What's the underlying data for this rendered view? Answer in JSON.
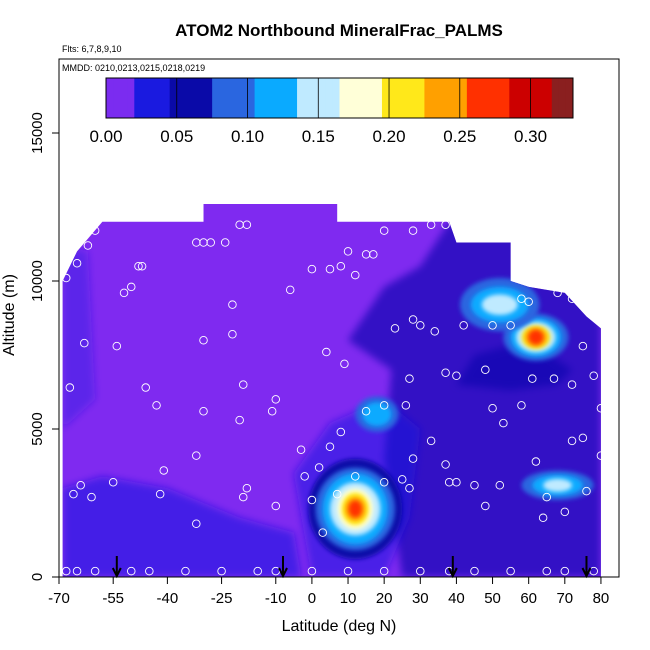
{
  "title": "ATOM2 Northbound MineralFrac_PALMS",
  "flights_text": "Flts: 6,7,8,9,10",
  "mmdd_text": "MMDD: 0210,0213,0215,0218,0219",
  "colors": {
    "scale": [
      "#7b2cf0",
      "#1a1ae0",
      "#0a0aa8",
      "#2a66e0",
      "#0aaaff",
      "#bfeaff",
      "#ffffd8",
      "#ffe81a",
      "#ffa000",
      "#ff3000",
      "#cc0000",
      "#8a1f1f"
    ],
    "background": "#7f2af0"
  },
  "chart_data": {
    "type": "heatmap",
    "title": "ATOM2 Northbound MineralFrac_PALMS",
    "xlabel": "Latitude (deg N)",
    "ylabel": "Altitude (m)",
    "xlim": [
      -70,
      85
    ],
    "ylim": [
      0,
      17500
    ],
    "x_ticks": [
      -70,
      -55,
      -40,
      -25,
      -10,
      0,
      10,
      20,
      30,
      40,
      50,
      60,
      70,
      80
    ],
    "x_tick_labels": [
      "-70",
      "-55",
      "-40",
      "-25",
      "-10",
      "0",
      "10",
      "20",
      "30",
      "40",
      "50",
      "60",
      "70",
      "80"
    ],
    "y_ticks": [
      0,
      5000,
      10000,
      15000
    ],
    "y_tick_labels": [
      "0",
      "5000",
      "10000",
      "15000"
    ],
    "colorbar": {
      "range": [
        0,
        0.33
      ],
      "ticks": [
        0.0,
        0.05,
        0.1,
        0.15,
        0.2,
        0.25,
        0.3
      ],
      "tick_labels": [
        "0.00",
        "0.05",
        "0.10",
        "0.15",
        "0.20",
        "0.25",
        "0.30"
      ],
      "placement": "top"
    },
    "hotspots": [
      {
        "lat": 12,
        "alt": 2300,
        "value": 0.26
      },
      {
        "lat": 62,
        "alt": 8100,
        "value": 0.28
      },
      {
        "lat": 52,
        "alt": 9200,
        "value": 0.1
      },
      {
        "lat": 68,
        "alt": 3100,
        "value": 0.12
      },
      {
        "lat": 18,
        "alt": 5500,
        "value": 0.06
      }
    ],
    "samples": [
      {
        "lat": -68,
        "alt": 10100
      },
      {
        "lat": -67,
        "alt": 6400
      },
      {
        "lat": -66,
        "alt": 2800
      },
      {
        "lat": -64,
        "alt": 3100
      },
      {
        "lat": -61,
        "alt": 2700
      },
      {
        "lat": -60,
        "alt": 11700
      },
      {
        "lat": -62,
        "alt": 11200
      },
      {
        "lat": -63,
        "alt": 7900
      },
      {
        "lat": -65,
        "alt": 10600
      },
      {
        "lat": -52,
        "alt": 9600
      },
      {
        "lat": -50,
        "alt": 9800
      },
      {
        "lat": -48,
        "alt": 10500
      },
      {
        "lat": -47,
        "alt": 10500
      },
      {
        "lat": -54,
        "alt": 7800
      },
      {
        "lat": -46,
        "alt": 6400
      },
      {
        "lat": -43,
        "alt": 5800
      },
      {
        "lat": -42,
        "alt": 2800
      },
      {
        "lat": -41,
        "alt": 3600
      },
      {
        "lat": -55,
        "alt": 3200
      },
      {
        "lat": -32,
        "alt": 11300
      },
      {
        "lat": -30,
        "alt": 11300
      },
      {
        "lat": -28,
        "alt": 11300
      },
      {
        "lat": -24,
        "alt": 11300
      },
      {
        "lat": -20,
        "alt": 11900
      },
      {
        "lat": -18,
        "alt": 11900
      },
      {
        "lat": -22,
        "alt": 8200
      },
      {
        "lat": -30,
        "alt": 8000
      },
      {
        "lat": -22,
        "alt": 9200
      },
      {
        "lat": -19,
        "alt": 6500
      },
      {
        "lat": -30,
        "alt": 5600
      },
      {
        "lat": -20,
        "alt": 5300
      },
      {
        "lat": -32,
        "alt": 4100
      },
      {
        "lat": -19,
        "alt": 2700
      },
      {
        "lat": -18,
        "alt": 3000
      },
      {
        "lat": -32,
        "alt": 1800
      },
      {
        "lat": -10,
        "alt": 6000
      },
      {
        "lat": -11,
        "alt": 5600
      },
      {
        "lat": -10,
        "alt": 2400
      },
      {
        "lat": -6,
        "alt": 9700
      },
      {
        "lat": 0,
        "alt": 10400
      },
      {
        "lat": 5,
        "alt": 10400
      },
      {
        "lat": 4,
        "alt": 7600
      },
      {
        "lat": 8,
        "alt": 10500
      },
      {
        "lat": 10,
        "alt": 11000
      },
      {
        "lat": 12,
        "alt": 10200
      },
      {
        "lat": 15,
        "alt": 10900
      },
      {
        "lat": 17,
        "alt": 10900
      },
      {
        "lat": 9,
        "alt": 7200
      },
      {
        "lat": 20,
        "alt": 11700
      },
      {
        "lat": 28,
        "alt": 11700
      },
      {
        "lat": 33,
        "alt": 11900
      },
      {
        "lat": 37,
        "alt": 11900
      },
      {
        "lat": 23,
        "alt": 8400
      },
      {
        "lat": 27,
        "alt": 6700
      },
      {
        "lat": 28,
        "alt": 8700
      },
      {
        "lat": 30,
        "alt": 8500
      },
      {
        "lat": 34,
        "alt": 8300
      },
      {
        "lat": 20,
        "alt": 5800
      },
      {
        "lat": 15,
        "alt": 5600
      },
      {
        "lat": 26,
        "alt": 5800
      },
      {
        "lat": 8,
        "alt": 4900
      },
      {
        "lat": 5,
        "alt": 4400
      },
      {
        "lat": 2,
        "alt": 3700
      },
      {
        "lat": -3,
        "alt": 4300
      },
      {
        "lat": -2,
        "alt": 3400
      },
      {
        "lat": 0,
        "alt": 2600
      },
      {
        "lat": 3,
        "alt": 1500
      },
      {
        "lat": 7,
        "alt": 2800
      },
      {
        "lat": 12,
        "alt": 3400
      },
      {
        "lat": 20,
        "alt": 3200
      },
      {
        "lat": 25,
        "alt": 3300
      },
      {
        "lat": 27,
        "alt": 3000
      },
      {
        "lat": 28,
        "alt": 4000
      },
      {
        "lat": 33,
        "alt": 4600
      },
      {
        "lat": 37,
        "alt": 6900
      },
      {
        "lat": 40,
        "alt": 6800
      },
      {
        "lat": 37,
        "alt": 3800
      },
      {
        "lat": 38,
        "alt": 3200
      },
      {
        "lat": 40,
        "alt": 3200
      },
      {
        "lat": 42,
        "alt": 8500
      },
      {
        "lat": 50,
        "alt": 8500
      },
      {
        "lat": 55,
        "alt": 8500
      },
      {
        "lat": 48,
        "alt": 7000
      },
      {
        "lat": 50,
        "alt": 5700
      },
      {
        "lat": 53,
        "alt": 5200
      },
      {
        "lat": 58,
        "alt": 5800
      },
      {
        "lat": 61,
        "alt": 6700
      },
      {
        "lat": 67,
        "alt": 6700
      },
      {
        "lat": 72,
        "alt": 6500
      },
      {
        "lat": 75,
        "alt": 7800
      },
      {
        "lat": 78,
        "alt": 6800
      },
      {
        "lat": 58,
        "alt": 9400
      },
      {
        "lat": 60,
        "alt": 9300
      },
      {
        "lat": 68,
        "alt": 9600
      },
      {
        "lat": 72,
        "alt": 9400
      },
      {
        "lat": 78,
        "alt": 8800
      },
      {
        "lat": 80,
        "alt": 5700
      },
      {
        "lat": 75,
        "alt": 4700
      },
      {
        "lat": 72,
        "alt": 4600
      },
      {
        "lat": 62,
        "alt": 3900
      },
      {
        "lat": 52,
        "alt": 3100
      },
      {
        "lat": 45,
        "alt": 3100
      },
      {
        "lat": 65,
        "alt": 2700
      },
      {
        "lat": 70,
        "alt": 2200
      },
      {
        "lat": 76,
        "alt": 2900
      },
      {
        "lat": 80,
        "alt": 4100
      },
      {
        "lat": 48,
        "alt": 2400
      },
      {
        "lat": 64,
        "alt": 2000
      },
      {
        "lat": -68,
        "alt": 200
      },
      {
        "lat": -65,
        "alt": 200
      },
      {
        "lat": -60,
        "alt": 200
      },
      {
        "lat": -50,
        "alt": 200
      },
      {
        "lat": -45,
        "alt": 200
      },
      {
        "lat": -35,
        "alt": 200
      },
      {
        "lat": -25,
        "alt": 200
      },
      {
        "lat": -15,
        "alt": 200
      },
      {
        "lat": -10,
        "alt": 200
      },
      {
        "lat": 0,
        "alt": 200
      },
      {
        "lat": 10,
        "alt": 200
      },
      {
        "lat": 20,
        "alt": 200
      },
      {
        "lat": 30,
        "alt": 200
      },
      {
        "lat": 38,
        "alt": 200
      },
      {
        "lat": 45,
        "alt": 200
      },
      {
        "lat": 55,
        "alt": 200
      },
      {
        "lat": 65,
        "alt": 200
      },
      {
        "lat": 70,
        "alt": 200
      },
      {
        "lat": 78,
        "alt": 200
      }
    ],
    "flight_markers": [
      -54,
      -8,
      39,
      76
    ],
    "grid": false
  }
}
